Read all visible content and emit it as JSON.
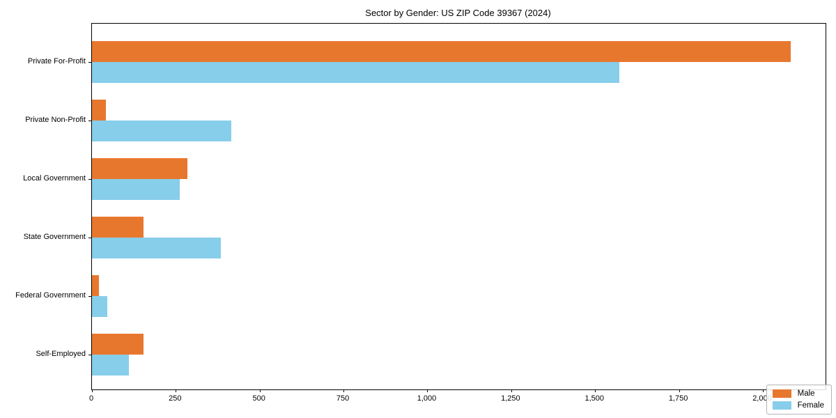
{
  "title": "Sector by Gender: US ZIP Code 39367 (2024)",
  "colors": {
    "male": "#e8772e",
    "female": "#87ceeb",
    "axis": "#000000",
    "legend_border": "#b3b3b3",
    "background": "#ffffff"
  },
  "chart_data": {
    "type": "bar",
    "orientation": "horizontal",
    "title": "Sector by Gender: US ZIP Code 39367 (2024)",
    "categories": [
      "Private For-Profit",
      "Private Non-Profit",
      "Local Government",
      "State Government",
      "Federal Government",
      "Self-Employed"
    ],
    "series": [
      {
        "name": "Male",
        "color": "#e8772e",
        "values": [
          2083,
          42,
          284,
          154,
          21,
          154
        ]
      },
      {
        "name": "Female",
        "color": "#87ceeb",
        "values": [
          1572,
          415,
          261,
          384,
          46,
          110
        ]
      }
    ],
    "xlabel": "",
    "ylabel": "",
    "xlim": [
      0,
      2187
    ],
    "xticks": [
      0,
      250,
      500,
      750,
      1000,
      1250,
      1500,
      1750,
      2000
    ],
    "xtick_labels": [
      "0",
      "250",
      "500",
      "750",
      "1,000",
      "1,250",
      "1,500",
      "1,750",
      "2,000"
    ],
    "grid": false,
    "legend": {
      "position": "lower right",
      "entries": [
        "Male",
        "Female"
      ]
    }
  }
}
